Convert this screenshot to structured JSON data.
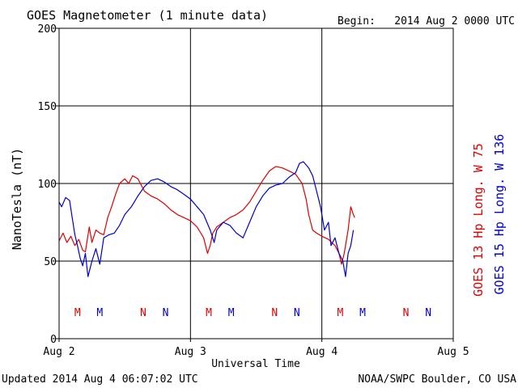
{
  "chart_data": {
    "type": "line",
    "title": "GOES Magnetometer (1 minute data)",
    "begin_label": "Begin:",
    "begin_value": "2014 Aug 2 0000 UTC",
    "xlabel": "Universal Time",
    "ylabel": "NanoTesla (nT)",
    "x_unit": "days since Begin",
    "xlim": [
      0,
      3
    ],
    "ylim": [
      0,
      200
    ],
    "yticks": [
      0,
      50,
      100,
      150,
      200
    ],
    "xticks": [
      {
        "x": 0,
        "label": "Aug 2"
      },
      {
        "x": 1,
        "label": "Aug 3"
      },
      {
        "x": 2,
        "label": "Aug 4"
      },
      {
        "x": 3,
        "label": "Aug 5"
      }
    ],
    "grid": true,
    "series": [
      {
        "name": "GOES 13 Hp",
        "longitude": "Long. W 75",
        "color": "#e00000",
        "x": [
          0.0,
          0.03,
          0.06,
          0.09,
          0.12,
          0.15,
          0.18,
          0.2,
          0.23,
          0.25,
          0.28,
          0.31,
          0.34,
          0.37,
          0.4,
          0.43,
          0.46,
          0.5,
          0.53,
          0.56,
          0.6,
          0.65,
          0.7,
          0.75,
          0.8,
          0.85,
          0.9,
          0.95,
          1.0,
          1.05,
          1.1,
          1.13,
          1.15,
          1.17,
          1.2,
          1.25,
          1.3,
          1.35,
          1.4,
          1.45,
          1.5,
          1.55,
          1.6,
          1.65,
          1.7,
          1.75,
          1.8,
          1.85,
          1.88,
          1.9,
          1.93,
          1.96,
          2.0,
          2.05,
          2.1,
          2.13,
          2.15,
          2.17,
          2.2,
          2.22,
          2.24,
          2.25
        ],
        "y": [
          63,
          68,
          62,
          66,
          60,
          64,
          57,
          56,
          72,
          62,
          70,
          68,
          67,
          78,
          85,
          93,
          100,
          103,
          100,
          105,
          103,
          95,
          92,
          90,
          87,
          83,
          80,
          78,
          76,
          72,
          65,
          55,
          60,
          68,
          72,
          75,
          78,
          80,
          83,
          88,
          95,
          102,
          108,
          111,
          110,
          108,
          106,
          100,
          90,
          80,
          70,
          68,
          66,
          64,
          60,
          55,
          48,
          55,
          70,
          85,
          80,
          78
        ]
      },
      {
        "name": "GOES 15 Hp",
        "longitude": "Long. W 136",
        "color": "#0000cc",
        "x": [
          0.0,
          0.02,
          0.05,
          0.08,
          0.1,
          0.12,
          0.14,
          0.16,
          0.18,
          0.2,
          0.22,
          0.25,
          0.28,
          0.31,
          0.34,
          0.38,
          0.42,
          0.46,
          0.5,
          0.55,
          0.6,
          0.65,
          0.7,
          0.75,
          0.8,
          0.85,
          0.9,
          0.95,
          1.0,
          1.05,
          1.1,
          1.15,
          1.18,
          1.2,
          1.25,
          1.3,
          1.35,
          1.4,
          1.45,
          1.5,
          1.55,
          1.6,
          1.65,
          1.7,
          1.75,
          1.8,
          1.83,
          1.86,
          1.9,
          1.93,
          1.96,
          1.99,
          2.02,
          2.05,
          2.07,
          2.1,
          2.13,
          2.16,
          2.18,
          2.2,
          2.22,
          2.24
        ],
        "y": [
          88,
          85,
          91,
          89,
          78,
          67,
          60,
          52,
          47,
          55,
          40,
          50,
          58,
          48,
          65,
          67,
          68,
          73,
          80,
          85,
          92,
          98,
          102,
          103,
          101,
          98,
          96,
          93,
          90,
          85,
          80,
          70,
          62,
          70,
          75,
          73,
          68,
          65,
          75,
          85,
          92,
          97,
          99,
          100,
          104,
          107,
          113,
          114,
          110,
          105,
          95,
          85,
          70,
          75,
          60,
          65,
          55,
          50,
          40,
          55,
          60,
          70
        ]
      }
    ],
    "markers": [
      {
        "x": 0.14,
        "label": "M",
        "series": "GOES 13 Hp"
      },
      {
        "x": 0.31,
        "label": "M",
        "series": "GOES 15 Hp"
      },
      {
        "x": 0.64,
        "label": "N",
        "series": "GOES 13 Hp"
      },
      {
        "x": 0.81,
        "label": "N",
        "series": "GOES 15 Hp"
      },
      {
        "x": 1.14,
        "label": "M",
        "series": "GOES 13 Hp"
      },
      {
        "x": 1.31,
        "label": "M",
        "series": "GOES 15 Hp"
      },
      {
        "x": 1.64,
        "label": "N",
        "series": "GOES 13 Hp"
      },
      {
        "x": 1.81,
        "label": "N",
        "series": "GOES 15 Hp"
      },
      {
        "x": 2.14,
        "label": "M",
        "series": "GOES 13 Hp"
      },
      {
        "x": 2.31,
        "label": "M",
        "series": "GOES 15 Hp"
      },
      {
        "x": 2.64,
        "label": "N",
        "series": "GOES 13 Hp"
      },
      {
        "x": 2.81,
        "label": "N",
        "series": "GOES 15 Hp"
      }
    ]
  },
  "footer": {
    "updated": "Updated 2014 Aug  4 06:07:02 UTC",
    "credit": "NOAA/SWPC Boulder, CO USA"
  }
}
